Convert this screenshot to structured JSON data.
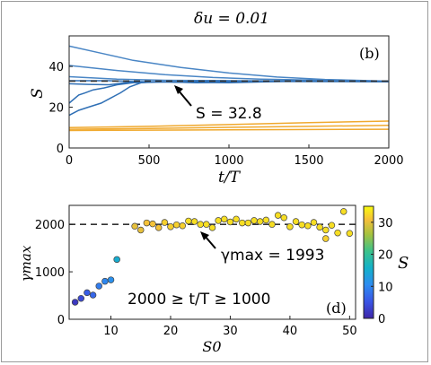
{
  "title": "δu = 0.01",
  "chart_data": [
    {
      "type": "line",
      "panel_label": "(b)",
      "xlabel": "t/T",
      "ylabel": "S",
      "xlim": [
        0,
        2000
      ],
      "ylim": [
        0,
        55
      ],
      "xticks": [
        0,
        500,
        1000,
        1500,
        2000
      ],
      "yticks": [
        0,
        20,
        40
      ],
      "reference_line": {
        "y": 32.8,
        "style": "dashed"
      },
      "annotation": "S = 32.8",
      "series": [
        {
          "color": "#4a86c5",
          "points": [
            [
              0,
              50
            ],
            [
              200,
              46.5
            ],
            [
              400,
              43
            ],
            [
              700,
              39.5
            ],
            [
              1000,
              36.8
            ],
            [
              1300,
              34.8
            ],
            [
              1600,
              33.6
            ],
            [
              2000,
              32.8
            ]
          ]
        },
        {
          "color": "#4a86c5",
          "points": [
            [
              0,
              40.5
            ],
            [
              300,
              38
            ],
            [
              600,
              36
            ],
            [
              900,
              34.6
            ],
            [
              1200,
              33.8
            ],
            [
              1600,
              33.2
            ],
            [
              2000,
              32.8
            ]
          ]
        },
        {
          "color": "#4a86c5",
          "points": [
            [
              0,
              35
            ],
            [
              300,
              33.8
            ],
            [
              600,
              33.2
            ],
            [
              1000,
              33
            ],
            [
              2000,
              32.8
            ]
          ]
        },
        {
          "color": "#2f6fb5",
          "points": [
            [
              0,
              33
            ],
            [
              250,
              33
            ],
            [
              400,
              32.6
            ],
            [
              700,
              32.2
            ],
            [
              1000,
              32
            ],
            [
              1400,
              32.8
            ],
            [
              2000,
              32.8
            ]
          ]
        },
        {
          "color": "#2f6fb5",
          "points": [
            [
              0,
              31.5
            ],
            [
              120,
              31.2
            ],
            [
              250,
              31
            ],
            [
              350,
              32
            ],
            [
              500,
              32.5
            ],
            [
              800,
              32.4
            ],
            [
              1200,
              32.6
            ],
            [
              2000,
              32.5
            ]
          ]
        },
        {
          "color": "#2f6fb5",
          "points": [
            [
              0,
              22
            ],
            [
              60,
              26
            ],
            [
              100,
              27
            ],
            [
              150,
              28.5
            ],
            [
              220,
              29.5
            ],
            [
              300,
              31
            ],
            [
              400,
              32
            ],
            [
              600,
              32.4
            ],
            [
              900,
              33
            ],
            [
              1300,
              32.8
            ],
            [
              2000,
              32.6
            ]
          ]
        },
        {
          "color": "#2f6fb5",
          "points": [
            [
              0,
              16
            ],
            [
              60,
              18.5
            ],
            [
              120,
              20
            ],
            [
              200,
              22
            ],
            [
              260,
              24.5
            ],
            [
              320,
              27
            ],
            [
              380,
              30
            ],
            [
              450,
              32
            ],
            [
              550,
              32.6
            ],
            [
              800,
              32
            ],
            [
              1200,
              32.8
            ],
            [
              2000,
              32.6
            ]
          ]
        },
        {
          "color": "#f0a92e",
          "points": [
            [
              0,
              10
            ],
            [
              500,
              10.6
            ],
            [
              1000,
              11.5
            ],
            [
              1500,
              12.4
            ],
            [
              2000,
              13.2
            ]
          ]
        },
        {
          "color": "#f0a92e",
          "points": [
            [
              0,
              9.2
            ],
            [
              500,
              9.6
            ],
            [
              1000,
              10.1
            ],
            [
              1500,
              10.6
            ],
            [
              2000,
              11.1
            ]
          ]
        },
        {
          "color": "#f0a92e",
          "points": [
            [
              0,
              8.6
            ],
            [
              700,
              8.8
            ],
            [
              1400,
              9
            ],
            [
              2000,
              9.2
            ]
          ]
        }
      ]
    },
    {
      "type": "scatter",
      "panel_label": "(d)",
      "xlabel": "S0",
      "ylabel": "γmax",
      "xlim": [
        3,
        51
      ],
      "ylim": [
        0,
        2400
      ],
      "xticks": [
        10,
        20,
        30,
        40,
        50
      ],
      "yticks": [
        0,
        1000,
        2000
      ],
      "reference_line": {
        "y": 2000,
        "style": "dashed"
      },
      "annotation": "γmax = 1993",
      "text_note": "2000 ≥ t/T ≥ 1000",
      "colorbar": {
        "label": "S",
        "min": 0,
        "max": 35,
        "ticks": [
          0,
          10,
          20,
          30
        ]
      },
      "points": [
        {
          "x": 4,
          "y": 360,
          "c": 2
        },
        {
          "x": 5,
          "y": 440,
          "c": 4
        },
        {
          "x": 6,
          "y": 560,
          "c": 6
        },
        {
          "x": 7,
          "y": 510,
          "c": 7
        },
        {
          "x": 8,
          "y": 700,
          "c": 9
        },
        {
          "x": 9,
          "y": 800,
          "c": 10
        },
        {
          "x": 10,
          "y": 830,
          "c": 11
        },
        {
          "x": 11,
          "y": 1260,
          "c": 15
        },
        {
          "x": 14,
          "y": 1960,
          "c": 30
        },
        {
          "x": 15,
          "y": 1880,
          "c": 30
        },
        {
          "x": 16,
          "y": 2030,
          "c": 31
        },
        {
          "x": 17,
          "y": 2010,
          "c": 31
        },
        {
          "x": 18,
          "y": 1930,
          "c": 31
        },
        {
          "x": 19,
          "y": 2040,
          "c": 32
        },
        {
          "x": 20,
          "y": 1950,
          "c": 32
        },
        {
          "x": 21,
          "y": 1990,
          "c": 32
        },
        {
          "x": 22,
          "y": 1970,
          "c": 32
        },
        {
          "x": 23,
          "y": 2070,
          "c": 33
        },
        {
          "x": 24,
          "y": 2060,
          "c": 33
        },
        {
          "x": 25,
          "y": 2000,
          "c": 33
        },
        {
          "x": 26,
          "y": 2000,
          "c": 33
        },
        {
          "x": 27,
          "y": 1930,
          "c": 33
        },
        {
          "x": 28,
          "y": 2080,
          "c": 33
        },
        {
          "x": 29,
          "y": 2110,
          "c": 33
        },
        {
          "x": 30,
          "y": 2050,
          "c": 33
        },
        {
          "x": 31,
          "y": 2110,
          "c": 33
        },
        {
          "x": 32,
          "y": 2030,
          "c": 33
        },
        {
          "x": 33,
          "y": 2030,
          "c": 33
        },
        {
          "x": 34,
          "y": 2080,
          "c": 33
        },
        {
          "x": 35,
          "y": 2060,
          "c": 33
        },
        {
          "x": 36,
          "y": 2090,
          "c": 33
        },
        {
          "x": 37,
          "y": 2000,
          "c": 33
        },
        {
          "x": 38,
          "y": 2190,
          "c": 33
        },
        {
          "x": 39,
          "y": 2140,
          "c": 33
        },
        {
          "x": 40,
          "y": 1950,
          "c": 33
        },
        {
          "x": 41,
          "y": 2060,
          "c": 33
        },
        {
          "x": 42,
          "y": 1990,
          "c": 33
        },
        {
          "x": 43,
          "y": 1970,
          "c": 33
        },
        {
          "x": 44,
          "y": 2040,
          "c": 33
        },
        {
          "x": 45,
          "y": 1940,
          "c": 33
        },
        {
          "x": 46,
          "y": 1880,
          "c": 33
        },
        {
          "x": 47,
          "y": 1980,
          "c": 33
        },
        {
          "x": 48,
          "y": 1820,
          "c": 33
        },
        {
          "x": 49,
          "y": 2270,
          "c": 33
        },
        {
          "x": 50,
          "y": 1810,
          "c": 33
        },
        {
          "x": 46,
          "y": 1700,
          "c": 32
        }
      ]
    }
  ]
}
